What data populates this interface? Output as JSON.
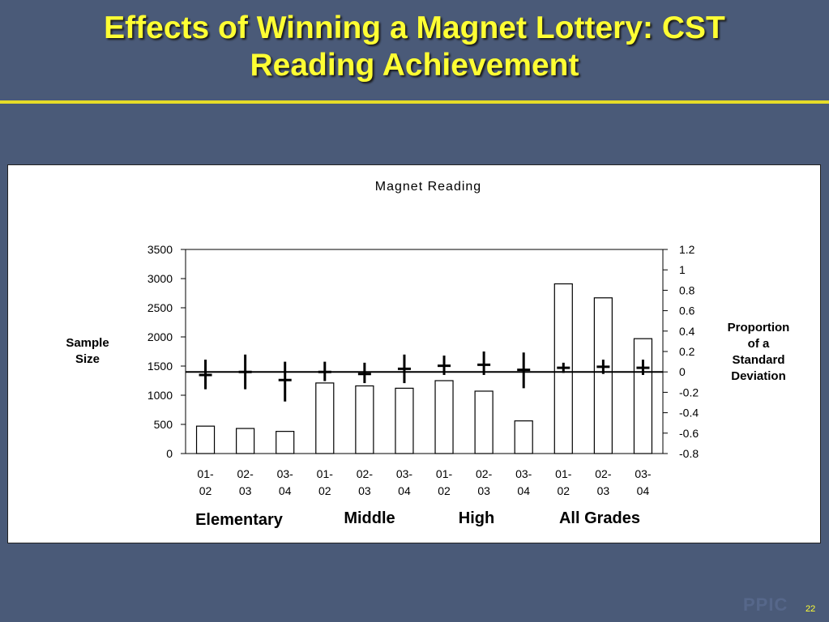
{
  "slide": {
    "title_line1": "Effects of Winning a Magnet Lottery: CST",
    "title_line2": "Reading Achievement",
    "logo": "PPIC",
    "page_number": "22",
    "title_color": "#ffff33",
    "background": "#4a5a78"
  },
  "chart_data": {
    "type": "bar",
    "title": "Magnet Reading",
    "left_axis_label": [
      "Sample",
      "Size"
    ],
    "right_axis_label": [
      "Proportion",
      "of a",
      "Standard",
      "Deviation"
    ],
    "left_ylim": [
      0,
      3500
    ],
    "left_ticks": [
      "3500",
      "3000",
      "2500",
      "2000",
      "1500",
      "1000",
      "500",
      "0"
    ],
    "right_ylim": [
      -0.8,
      1.2
    ],
    "right_ticks": [
      "1.2",
      "1",
      "0.8",
      "0.6",
      "0.4",
      "0.2",
      "0",
      "-0.2",
      "-0.4",
      "-0.6",
      "-0.8"
    ],
    "categories": [
      [
        "01-",
        "02"
      ],
      [
        "02-",
        "03"
      ],
      [
        "03-",
        "04"
      ],
      [
        "01-",
        "02"
      ],
      [
        "02-",
        "03"
      ],
      [
        "03-",
        "04"
      ],
      [
        "01-",
        "02"
      ],
      [
        "02-",
        "03"
      ],
      [
        "03-",
        "04"
      ],
      [
        "01-",
        "02"
      ],
      [
        "02-",
        "03"
      ],
      [
        "03-",
        "04"
      ]
    ],
    "groups": [
      "Elementary",
      "Middle",
      "High",
      "All Grades"
    ],
    "sample_size": [
      470,
      430,
      380,
      1210,
      1160,
      1120,
      1250,
      1070,
      560,
      2910,
      2670,
      1970
    ],
    "effect_estimate": [
      -0.03,
      0.0,
      -0.08,
      0.0,
      -0.02,
      0.03,
      0.06,
      0.07,
      0.02,
      0.04,
      0.05,
      0.04
    ],
    "ci_low": [
      -0.17,
      -0.17,
      -0.29,
      -0.09,
      -0.11,
      -0.11,
      -0.03,
      -0.03,
      -0.16,
      -0.01,
      -0.02,
      -0.03
    ],
    "ci_high": [
      0.12,
      0.17,
      0.1,
      0.1,
      0.09,
      0.17,
      0.16,
      0.2,
      0.19,
      0.09,
      0.12,
      0.12
    ],
    "reference_line": 0,
    "bar_fill": "#ffffff",
    "bar_stroke": "#000000"
  }
}
